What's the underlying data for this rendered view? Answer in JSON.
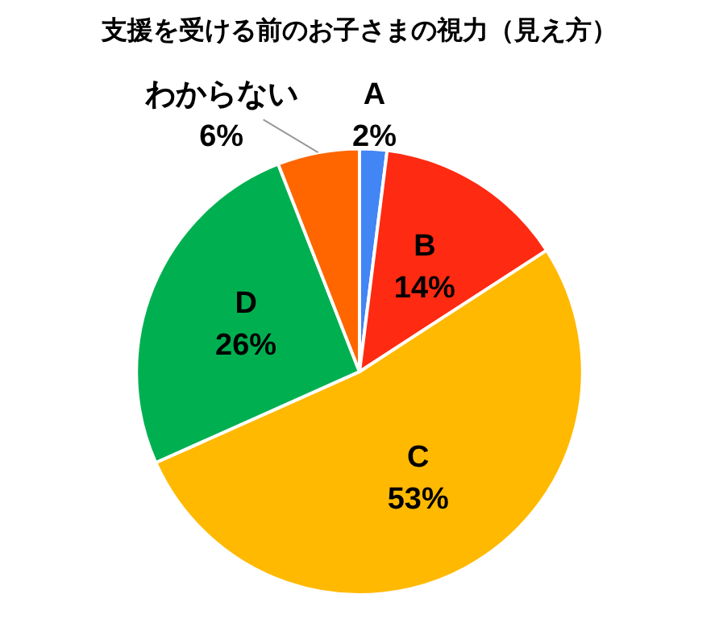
{
  "chart_data": {
    "type": "pie",
    "title": "支援を受ける前のお子さまの視力（見え方）",
    "categories": [
      "A",
      "B",
      "C",
      "D",
      "わからない"
    ],
    "values": [
      2,
      14,
      53,
      26,
      6
    ],
    "value_labels": [
      "2%",
      "14%",
      "53%",
      "26%",
      "6%"
    ],
    "colors": [
      "#4285f4",
      "#ff2a12",
      "#ffb900",
      "#00b050",
      "#ff6600"
    ],
    "legend": false
  }
}
